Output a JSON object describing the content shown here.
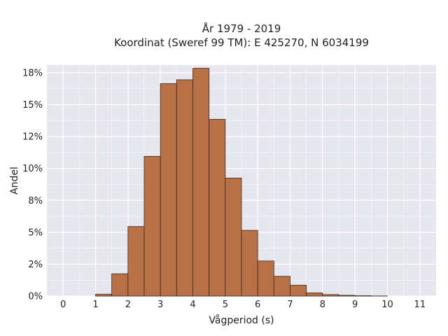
{
  "chart_data": {
    "type": "bar",
    "title": "År 1979 - 2019",
    "subtitle": "Koordinat (Sweref 99 TM): E 425270, N 6034199",
    "xlabel": "Vågperiod (s)",
    "ylabel": "Andel",
    "x_ticks": [
      "0",
      "1",
      "2",
      "3",
      "4",
      "5",
      "6",
      "7",
      "8",
      "9",
      "10",
      "11"
    ],
    "y_ticks": [
      "0%",
      "2%",
      "5%",
      "8%",
      "10%",
      "12%",
      "15%",
      "18%"
    ],
    "xlim": [
      -0.5,
      11.5
    ],
    "ylim": [
      0,
      0.181
    ],
    "bin_width": 0.5,
    "bins": [
      {
        "x0": 1.0,
        "value": 0.0015
      },
      {
        "x0": 1.5,
        "value": 0.0175
      },
      {
        "x0": 2.0,
        "value": 0.0545
      },
      {
        "x0": 2.5,
        "value": 0.1095
      },
      {
        "x0": 3.0,
        "value": 0.1665
      },
      {
        "x0": 3.5,
        "value": 0.1695
      },
      {
        "x0": 4.0,
        "value": 0.1785
      },
      {
        "x0": 4.5,
        "value": 0.1385
      },
      {
        "x0": 5.0,
        "value": 0.0925
      },
      {
        "x0": 5.5,
        "value": 0.0515
      },
      {
        "x0": 6.0,
        "value": 0.0275
      },
      {
        "x0": 6.5,
        "value": 0.0155
      },
      {
        "x0": 7.0,
        "value": 0.0085
      },
      {
        "x0": 7.5,
        "value": 0.0025
      },
      {
        "x0": 8.0,
        "value": 0.0012
      },
      {
        "x0": 8.5,
        "value": 0.0006
      },
      {
        "x0": 9.0,
        "value": 0.0003
      },
      {
        "x0": 9.5,
        "value": 0.0001
      }
    ],
    "grid": true,
    "colors": {
      "background": "#e6e6ef",
      "grid": "#ffffff",
      "bar_fill": "#b5693c",
      "bar_edge": "#3a2a20"
    }
  }
}
